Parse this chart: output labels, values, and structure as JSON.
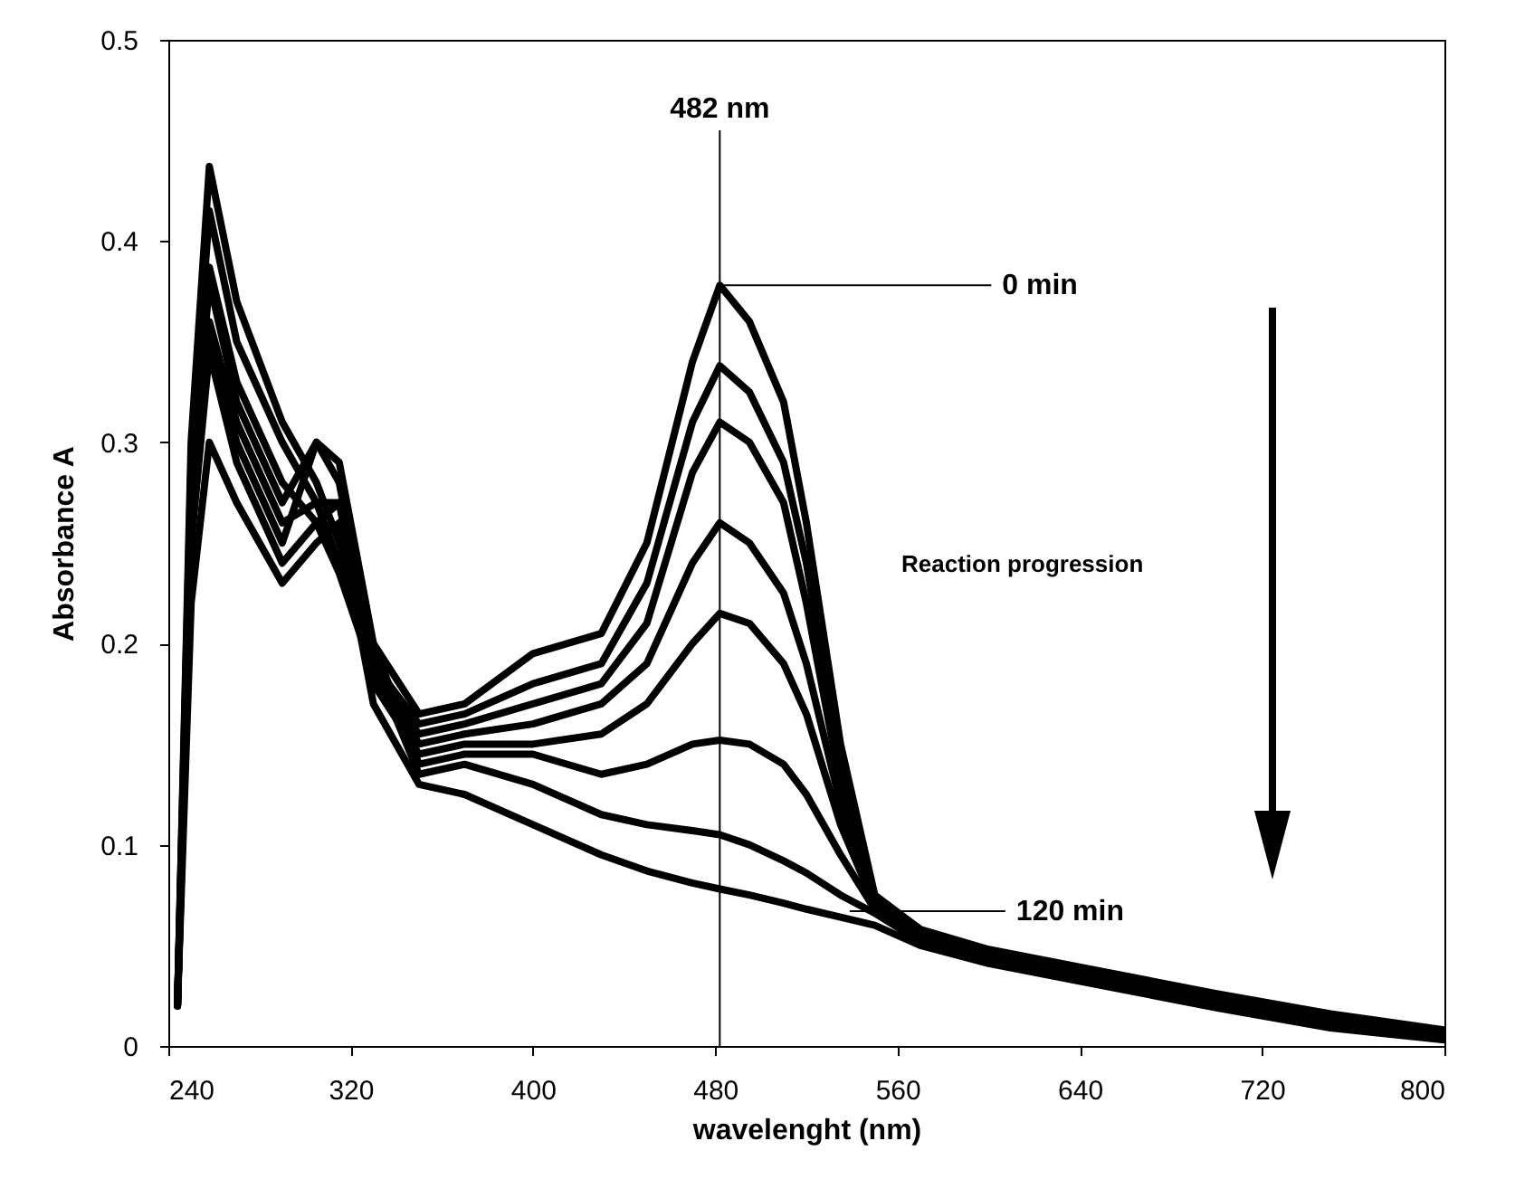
{
  "chart_data": {
    "type": "line",
    "xlabel": "wavelenght (nm)",
    "ylabel": "Absorbance A",
    "xlim": [
      240,
      800
    ],
    "ylim": [
      0,
      0.5
    ],
    "xticks": [
      240,
      320,
      400,
      480,
      560,
      640,
      720,
      800
    ],
    "yticks": [
      0,
      0.1,
      0.2,
      0.3,
      0.4,
      0.5
    ],
    "grid": false,
    "marker": "none",
    "line_style": "solid",
    "x": [
      244,
      250,
      258,
      270,
      290,
      305,
      315,
      330,
      350,
      370,
      400,
      430,
      450,
      470,
      482,
      495,
      510,
      520,
      535,
      550,
      570,
      600,
      650,
      700,
      750,
      800
    ],
    "series": [
      {
        "color": "#000000",
        "values": [
          0.02,
          0.3,
          0.437,
          0.37,
          0.31,
          0.28,
          0.25,
          0.2,
          0.165,
          0.17,
          0.195,
          0.205,
          0.25,
          0.34,
          0.378,
          0.36,
          0.32,
          0.26,
          0.15,
          0.075,
          0.058,
          0.048,
          0.037,
          0.026,
          0.016,
          0.008
        ]
      },
      {
        "color": "#000000",
        "values": [
          0.02,
          0.29,
          0.415,
          0.35,
          0.3,
          0.27,
          0.24,
          0.19,
          0.16,
          0.165,
          0.18,
          0.19,
          0.23,
          0.31,
          0.338,
          0.325,
          0.29,
          0.24,
          0.14,
          0.074,
          0.057,
          0.047,
          0.036,
          0.025,
          0.015,
          0.007
        ]
      },
      {
        "color": "#000000",
        "values": [
          0.02,
          0.28,
          0.387,
          0.33,
          0.28,
          0.26,
          0.235,
          0.185,
          0.155,
          0.16,
          0.17,
          0.18,
          0.21,
          0.285,
          0.31,
          0.3,
          0.27,
          0.22,
          0.13,
          0.073,
          0.056,
          0.046,
          0.035,
          0.024,
          0.014,
          0.006
        ]
      },
      {
        "color": "#000000",
        "values": [
          0.02,
          0.27,
          0.38,
          0.32,
          0.27,
          0.3,
          0.28,
          0.19,
          0.15,
          0.155,
          0.16,
          0.17,
          0.19,
          0.24,
          0.26,
          0.25,
          0.225,
          0.19,
          0.12,
          0.072,
          0.055,
          0.045,
          0.034,
          0.023,
          0.013,
          0.006
        ]
      },
      {
        "color": "#000000",
        "values": [
          0.02,
          0.26,
          0.36,
          0.31,
          0.26,
          0.27,
          0.27,
          0.18,
          0.145,
          0.15,
          0.15,
          0.155,
          0.17,
          0.2,
          0.215,
          0.21,
          0.19,
          0.165,
          0.11,
          0.07,
          0.054,
          0.044,
          0.033,
          0.022,
          0.012,
          0.005
        ]
      },
      {
        "color": "#000000",
        "values": [
          0.02,
          0.25,
          0.35,
          0.3,
          0.25,
          0.3,
          0.29,
          0.2,
          0.14,
          0.145,
          0.145,
          0.135,
          0.14,
          0.15,
          0.152,
          0.15,
          0.14,
          0.125,
          0.095,
          0.068,
          0.053,
          0.043,
          0.032,
          0.021,
          0.011,
          0.005
        ]
      },
      {
        "color": "#000000",
        "values": [
          0.02,
          0.25,
          0.345,
          0.29,
          0.24,
          0.26,
          0.27,
          0.19,
          0.135,
          0.14,
          0.13,
          0.115,
          0.11,
          0.107,
          0.105,
          0.1,
          0.092,
          0.086,
          0.075,
          0.066,
          0.052,
          0.042,
          0.031,
          0.02,
          0.01,
          0.004
        ]
      },
      {
        "color": "#000000",
        "values": [
          0.02,
          0.22,
          0.3,
          0.27,
          0.23,
          0.25,
          0.26,
          0.17,
          0.13,
          0.125,
          0.11,
          0.095,
          0.087,
          0.081,
          0.078,
          0.075,
          0.071,
          0.068,
          0.064,
          0.06,
          0.05,
          0.041,
          0.03,
          0.019,
          0.009,
          0.003
        ]
      }
    ],
    "ref_lines": [
      {
        "axis": "x",
        "value": 482,
        "label": "482 nm"
      }
    ],
    "annotations": [
      {
        "text": "0 min",
        "x": 482,
        "y": 0.378
      },
      {
        "text": "120 min",
        "x": 539,
        "y": 0.067
      },
      "Reaction progression"
    ]
  }
}
